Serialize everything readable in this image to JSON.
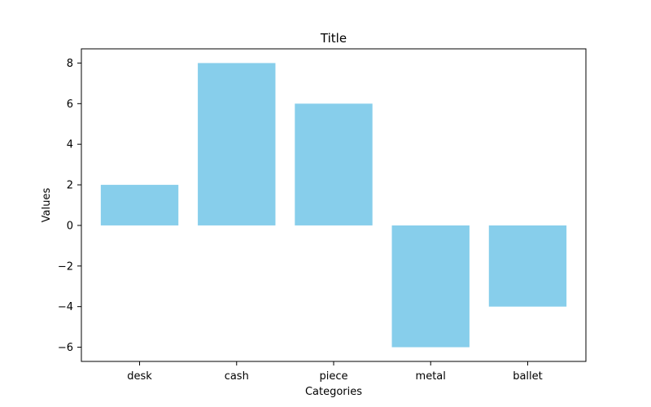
{
  "chart_data": {
    "type": "bar",
    "title": "Title",
    "xlabel": "Categories",
    "ylabel": "Values",
    "categories": [
      "desk",
      "cash",
      "piece",
      "metal",
      "ballet"
    ],
    "values": [
      2,
      8,
      6,
      -6,
      -4
    ],
    "ylim": [
      -6.7,
      8.7
    ],
    "yticks": [
      -6,
      -4,
      -2,
      0,
      2,
      4,
      6,
      8
    ],
    "ytick_labels": [
      "−6",
      "−4",
      "−2",
      "0",
      "2",
      "4",
      "6",
      "8"
    ],
    "grid": false,
    "legend": false,
    "colors": {
      "bar": "#87ceeb",
      "axis": "#000000",
      "text": "#000000",
      "background": "#ffffff"
    }
  }
}
